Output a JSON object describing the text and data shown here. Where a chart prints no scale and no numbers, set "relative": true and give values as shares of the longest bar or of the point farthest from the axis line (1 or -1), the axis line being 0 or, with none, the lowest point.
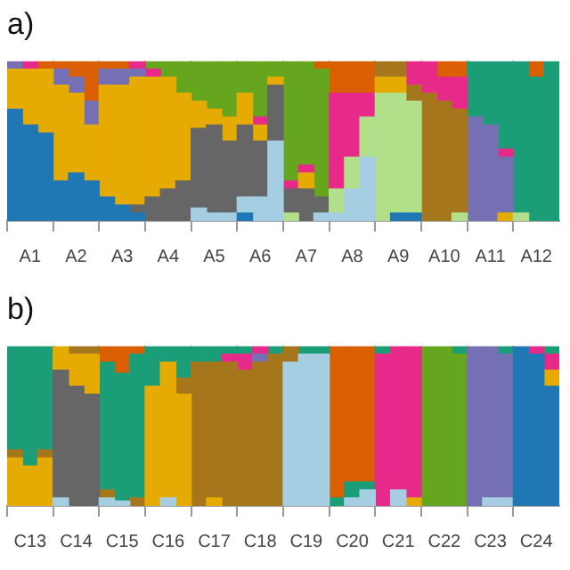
{
  "chart_data": [
    {
      "type": "bar",
      "title": "a)",
      "stacked": true,
      "relative": true,
      "grid": "x",
      "categories": [
        null,
        "A1",
        null,
        null,
        "A2",
        null,
        null,
        "A3",
        null,
        null,
        "A4",
        null,
        null,
        "A5",
        null,
        null,
        "A6",
        null,
        null,
        "A7",
        null,
        null,
        "A8",
        null,
        null,
        "A9",
        null,
        null,
        "A10",
        null,
        null,
        "A11",
        null,
        null,
        "A12",
        null
      ],
      "series": [
        {
          "color": "#1f78b4",
          "values": [
            0.7,
            0.6,
            0.55,
            0.25,
            0.3,
            0.25,
            0.15,
            0.1,
            0.05,
            null,
            null,
            null,
            null,
            null,
            null,
            0.05,
            null,
            null,
            null,
            null,
            null,
            null,
            null,
            null,
            null,
            0.05,
            0.05,
            null,
            null,
            null,
            null,
            null,
            null,
            null,
            null,
            null
          ]
        },
        {
          "color": "#a6cee3",
          "values": [
            null,
            null,
            null,
            null,
            null,
            null,
            null,
            null,
            null,
            null,
            null,
            null,
            0.08,
            0.05,
            0.05,
            0.1,
            0.15,
            0.5,
            null,
            null,
            0.05,
            0.05,
            0.2,
            0.4,
            null,
            null,
            null,
            null,
            null,
            null,
            null,
            null,
            null,
            null,
            null,
            null
          ]
        },
        {
          "color": "#b2df8a",
          "values": [
            null,
            null,
            null,
            null,
            null,
            null,
            null,
            null,
            null,
            null,
            null,
            null,
            null,
            null,
            null,
            null,
            null,
            null,
            0.05,
            null,
            null,
            0.15,
            0.2,
            0.25,
            0.8,
            0.75,
            0.7,
            null,
            null,
            0.05,
            null,
            null,
            null,
            0.05,
            null,
            null
          ]
        },
        {
          "color": "#666666",
          "values": [
            null,
            null,
            null,
            null,
            null,
            null,
            null,
            null,
            0.05,
            0.15,
            0.2,
            0.25,
            0.5,
            0.55,
            0.45,
            0.45,
            0.35,
            0.35,
            0.15,
            0.2,
            0.1,
            null,
            null,
            null,
            null,
            null,
            null,
            null,
            null,
            null,
            null,
            null,
            null,
            null,
            null,
            null
          ]
        },
        {
          "color": "#e6ab02",
          "values": [
            0.25,
            0.35,
            0.4,
            0.6,
            0.5,
            0.35,
            0.7,
            0.75,
            0.8,
            0.75,
            0.7,
            0.55,
            0.17,
            0.1,
            0.15,
            0.2,
            0.1,
            0.05,
            null,
            0.1,
            null,
            null,
            null,
            null,
            0.1,
            0.1,
            null,
            null,
            null,
            null,
            null,
            null,
            0.05,
            null,
            null,
            null
          ]
        },
        {
          "color": "#a6761d",
          "values": [
            null,
            null,
            null,
            null,
            null,
            null,
            null,
            null,
            null,
            null,
            null,
            null,
            null,
            null,
            null,
            null,
            null,
            null,
            null,
            null,
            null,
            null,
            null,
            null,
            0.1,
            0.1,
            0.1,
            0.8,
            0.75,
            0.65,
            null,
            null,
            null,
            null,
            null,
            null
          ]
        },
        {
          "color": "#7570b3",
          "values": [
            0.05,
            null,
            null,
            0.1,
            0.1,
            0.15,
            0.1,
            0.1,
            0.05,
            null,
            null,
            null,
            null,
            null,
            null,
            null,
            null,
            null,
            null,
            null,
            null,
            null,
            null,
            null,
            null,
            null,
            null,
            null,
            null,
            null,
            0.65,
            0.6,
            0.35,
            null,
            null,
            null
          ]
        },
        {
          "color": "#e7298a",
          "values": [
            null,
            0.05,
            null,
            null,
            null,
            null,
            null,
            null,
            0.05,
            0.05,
            null,
            null,
            null,
            null,
            null,
            null,
            0.05,
            null,
            0.05,
            0.05,
            null,
            0.6,
            0.4,
            0.15,
            null,
            null,
            0.15,
            0.2,
            0.15,
            0.2,
            null,
            null,
            0.05,
            null,
            null,
            null
          ]
        },
        {
          "color": "#66a61e",
          "values": [
            null,
            null,
            null,
            null,
            null,
            null,
            null,
            null,
            null,
            0.05,
            0.1,
            0.2,
            0.25,
            0.3,
            0.35,
            0.2,
            0.35,
            0.1,
            0.75,
            0.65,
            0.8,
            null,
            null,
            null,
            null,
            null,
            null,
            null,
            null,
            null,
            null,
            null,
            null,
            null,
            null,
            null
          ]
        },
        {
          "color": "#1b9e77",
          "values": [
            null,
            null,
            null,
            null,
            null,
            null,
            null,
            null,
            null,
            null,
            null,
            null,
            null,
            null,
            null,
            null,
            null,
            null,
            null,
            null,
            null,
            null,
            null,
            null,
            null,
            null,
            null,
            null,
            null,
            null,
            0.35,
            0.4,
            0.55,
            0.95,
            0.9,
            1
          ]
        },
        {
          "color": "#d95f02",
          "values": [
            null,
            null,
            0.05,
            0.05,
            0.1,
            0.25,
            0.05,
            0.05,
            null,
            null,
            null,
            null,
            null,
            null,
            null,
            null,
            null,
            null,
            null,
            null,
            0.05,
            0.2,
            0.2,
            0.2,
            null,
            null,
            null,
            null,
            0.1,
            0.1,
            null,
            null,
            null,
            null,
            0.1,
            null
          ]
        }
      ]
    },
    {
      "type": "bar",
      "title": "b)",
      "stacked": true,
      "relative": true,
      "grid": "x",
      "categories": [
        null,
        "C13",
        null,
        null,
        "C14",
        null,
        null,
        "C15",
        null,
        null,
        "C16",
        null,
        null,
        "C17",
        null,
        null,
        "C18",
        null,
        null,
        "C19",
        null,
        null,
        "C20",
        null,
        null,
        "C21",
        null,
        null,
        "C22",
        null,
        null,
        "C23",
        null,
        null,
        "C24",
        null
      ],
      "series": [
        {
          "color": "#1f78b4",
          "values": [
            null,
            null,
            null,
            null,
            null,
            null,
            null,
            null,
            null,
            null,
            null,
            null,
            null,
            null,
            null,
            null,
            null,
            null,
            null,
            null,
            null,
            null,
            null,
            null,
            null,
            null,
            null,
            null,
            null,
            null,
            null,
            null,
            null,
            1,
            0.95,
            0.75
          ]
        },
        {
          "color": "#a6cee3",
          "values": [
            null,
            null,
            null,
            0.05,
            null,
            null,
            0.05,
            0.03,
            null,
            null,
            0.05,
            null,
            null,
            null,
            null,
            null,
            null,
            null,
            0.9,
            0.95,
            0.95,
            null,
            0.05,
            0.1,
            null,
            0.1,
            null,
            null,
            null,
            null,
            null,
            0.05,
            0.05,
            null,
            null,
            null
          ]
        },
        {
          "color": "#666666",
          "values": [
            null,
            null,
            null,
            0.8,
            0.75,
            0.7,
            null,
            null,
            null,
            null,
            null,
            null,
            null,
            null,
            null,
            null,
            null,
            null,
            null,
            null,
            null,
            null,
            null,
            null,
            null,
            null,
            null,
            null,
            null,
            null,
            null,
            null,
            null,
            null,
            null,
            null
          ]
        },
        {
          "color": "#e6ab02",
          "values": [
            0.3,
            0.25,
            0.3,
            0.15,
            0.2,
            0.25,
            null,
            null,
            null,
            0.75,
            0.85,
            0.7,
            null,
            0.05,
            null,
            null,
            null,
            null,
            null,
            null,
            null,
            null,
            null,
            null,
            null,
            null,
            0.05,
            null,
            null,
            null,
            null,
            null,
            null,
            null,
            null,
            0.1
          ]
        },
        {
          "color": "#a6761d",
          "values": [
            0.05,
            null,
            0.05,
            null,
            0.05,
            0.05,
            0.05,
            null,
            0.05,
            null,
            null,
            0.1,
            0.9,
            0.85,
            0.9,
            0.85,
            0.9,
            0.95,
            0.1,
            null,
            null,
            null,
            null,
            null,
            null,
            null,
            null,
            null,
            null,
            null,
            null,
            null,
            null,
            null,
            null,
            null
          ]
        },
        {
          "color": "#7570b3",
          "values": [
            null,
            null,
            null,
            null,
            null,
            null,
            null,
            null,
            null,
            null,
            null,
            null,
            null,
            null,
            null,
            null,
            0.05,
            null,
            null,
            null,
            null,
            null,
            null,
            null,
            null,
            null,
            null,
            null,
            null,
            null,
            1,
            0.95,
            0.9,
            null,
            null,
            null
          ]
        },
        {
          "color": "#e7298a",
          "values": [
            null,
            null,
            null,
            null,
            null,
            null,
            null,
            null,
            null,
            null,
            null,
            null,
            null,
            null,
            0.05,
            0.1,
            0.05,
            null,
            null,
            null,
            null,
            null,
            null,
            null,
            0.95,
            0.9,
            0.95,
            null,
            null,
            null,
            null,
            null,
            null,
            null,
            0.05,
            0.1
          ]
        },
        {
          "color": "#66a61e",
          "values": [
            null,
            null,
            null,
            null,
            null,
            null,
            null,
            null,
            null,
            null,
            null,
            null,
            null,
            null,
            null,
            null,
            null,
            null,
            null,
            null,
            null,
            null,
            null,
            null,
            null,
            null,
            null,
            1,
            1,
            0.95,
            null,
            null,
            null,
            null,
            null,
            null
          ]
        },
        {
          "color": "#1b9e77",
          "values": [
            0.65,
            0.75,
            0.65,
            null,
            null,
            null,
            0.8,
            0.8,
            0.9,
            0.25,
            0.1,
            0.2,
            0.1,
            0.1,
            0.05,
            0.05,
            null,
            0.05,
            null,
            0.05,
            0.05,
            0.05,
            0.1,
            0.05,
            0.05,
            null,
            null,
            null,
            null,
            0.05,
            null,
            null,
            0.05,
            null,
            null,
            0.05
          ]
        },
        {
          "color": "#d95f02",
          "values": [
            null,
            null,
            null,
            null,
            null,
            null,
            0.1,
            0.17,
            0.05,
            null,
            null,
            null,
            null,
            null,
            null,
            null,
            null,
            null,
            null,
            null,
            null,
            0.95,
            0.85,
            0.85,
            null,
            null,
            null,
            null,
            null,
            null,
            null,
            null,
            null,
            null,
            null,
            null
          ]
        }
      ]
    }
  ]
}
